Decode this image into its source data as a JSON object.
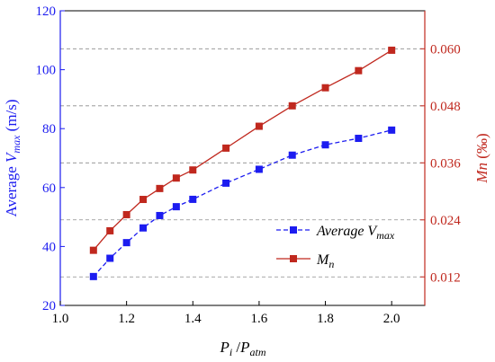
{
  "chart_data": {
    "type": "line",
    "xlabel": {
      "main": "P",
      "main_sub": "i",
      "sep": " /",
      "second": "P",
      "second_sub": "atm"
    },
    "ylabel_left": {
      "prefix": "Average ",
      "var": "V",
      "sub": "max",
      "unit": " (m/s)"
    },
    "ylabel_right": {
      "var": "Mn",
      "unit": " (‰)"
    },
    "x_ticks": [
      "1.0",
      "1.2",
      "1.4",
      "1.6",
      "1.8",
      "2.0"
    ],
    "y_left_ticks": [
      "20",
      "40",
      "60",
      "80",
      "100",
      "120"
    ],
    "y_right_ticks": [
      "0.012",
      "0.024",
      "0.036",
      "0.048",
      "0.060"
    ],
    "xlim": [
      1.0,
      2.1
    ],
    "ylim_left": [
      20,
      120
    ],
    "ylim_right": [
      0.006,
      0.068
    ],
    "grid": "dashed-horizontal",
    "legend_position": "bottom-right",
    "series": [
      {
        "name": "Average V",
        "name_sub": "max",
        "axis": "left",
        "color": "#1c1cf0",
        "line_style": "dashed",
        "marker": "square",
        "x": [
          1.1,
          1.15,
          1.2,
          1.25,
          1.3,
          1.35,
          1.4,
          1.5,
          1.6,
          1.7,
          1.8,
          1.9,
          2.0
        ],
        "y": [
          29.8,
          36.0,
          41.3,
          46.3,
          50.5,
          53.5,
          56.0,
          61.5,
          66.2,
          71.0,
          74.5,
          76.7,
          79.5
        ]
      },
      {
        "name": "M",
        "name_sub": "n",
        "axis": "right",
        "color": "#c0281e",
        "line_style": "solid",
        "marker": "square",
        "x": [
          1.1,
          1.15,
          1.2,
          1.25,
          1.3,
          1.35,
          1.4,
          1.5,
          1.6,
          1.7,
          1.8,
          1.9,
          2.0
        ],
        "y": [
          0.0176,
          0.0217,
          0.0251,
          0.0283,
          0.0306,
          0.0328,
          0.0345,
          0.0391,
          0.0437,
          0.048,
          0.0518,
          0.0554,
          0.0597
        ]
      }
    ]
  }
}
